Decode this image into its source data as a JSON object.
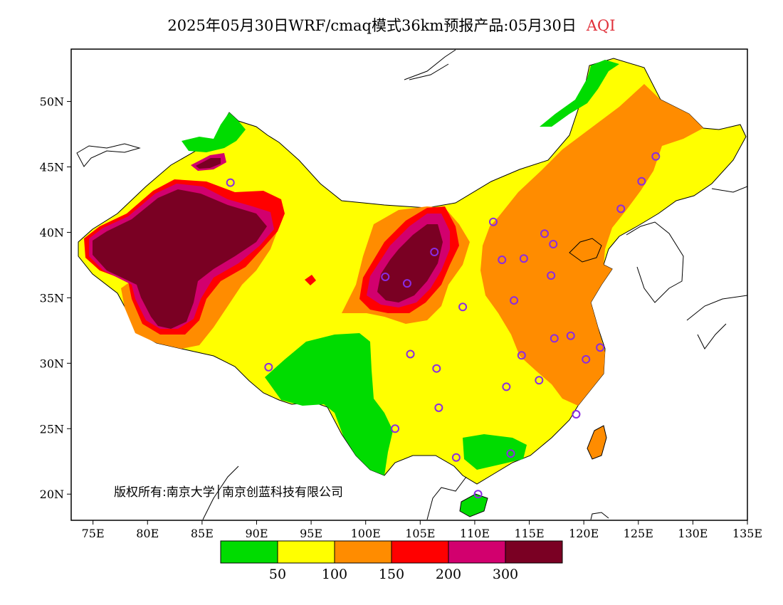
{
  "title": {
    "main": "2025年05月30日WRF/cmaq模式36km预报产品:05月30日",
    "variable": "AQI"
  },
  "map": {
    "lon_labels": [
      "75E",
      "80E",
      "85E",
      "90E",
      "95E",
      "100E",
      "105E",
      "110E",
      "115E",
      "120E",
      "125E",
      "130E",
      "135E"
    ],
    "lat_labels": [
      "20N",
      "25N",
      "30N",
      "35N",
      "40N",
      "45N",
      "50N"
    ],
    "extent": {
      "lon_min": 73,
      "lon_max": 135,
      "lat_min": 18,
      "lat_max": 54
    },
    "copyright": "版权所有:南京大学│南京创蓝科技有限公司"
  },
  "legend": {
    "colors": [
      "#00dc00",
      "#ffff00",
      "#ff8c00",
      "#ff0000",
      "#d2006e",
      "#7a0023"
    ],
    "labels": [
      "50",
      "100",
      "150",
      "200",
      "300"
    ]
  }
}
